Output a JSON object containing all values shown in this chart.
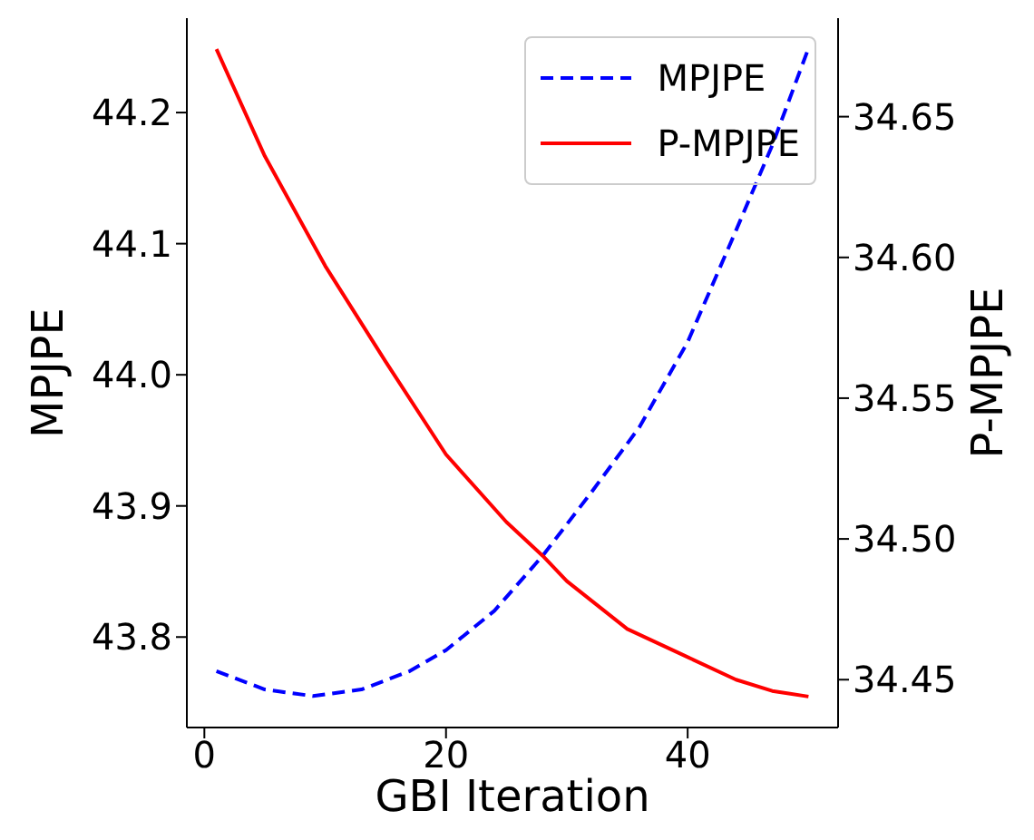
{
  "chart_data": {
    "type": "line",
    "xlabel": "GBI Iteration",
    "ylabel": "MPJPE",
    "y2label": "P-MPJPE",
    "xlim": [
      -1.45,
      52.45
    ],
    "xticks": [
      0,
      20,
      40
    ],
    "ylim": [
      43.731,
      44.272
    ],
    "yticks": [
      43.8,
      43.9,
      {
        "value": 44.0,
        "label": "44.0"
      },
      44.1,
      44.2
    ],
    "y2lim": [
      34.433,
      34.685
    ],
    "y2ticks": [
      34.45,
      {
        "value": 34.5,
        "label": "34.50"
      },
      34.55,
      {
        "value": 34.6,
        "label": "34.60"
      },
      34.65
    ],
    "legend": "top right",
    "grid": false,
    "series": [
      {
        "name": "MPJPE",
        "color": "#0000ff",
        "line_style": "dashed",
        "x": [
          1,
          5,
          9,
          13,
          17,
          20,
          24,
          28,
          32,
          36,
          40,
          44,
          47,
          50
        ],
        "values": [
          43.774,
          43.76,
          43.755,
          43.76,
          43.774,
          43.79,
          43.82,
          43.862,
          43.91,
          43.96,
          44.025,
          44.11,
          44.175,
          44.249
        ]
      },
      {
        "name": "P-MPJPE",
        "color": "#ff0000",
        "line_style": "solid",
        "axis": "y2",
        "x": [
          1,
          5,
          10,
          15,
          20,
          25,
          28,
          30,
          35,
          40,
          44,
          47,
          50
        ],
        "values": [
          34.674,
          34.636,
          34.597,
          34.563,
          34.53,
          34.506,
          34.494,
          34.485,
          34.468,
          34.458,
          34.45,
          34.446,
          34.444
        ]
      }
    ]
  }
}
